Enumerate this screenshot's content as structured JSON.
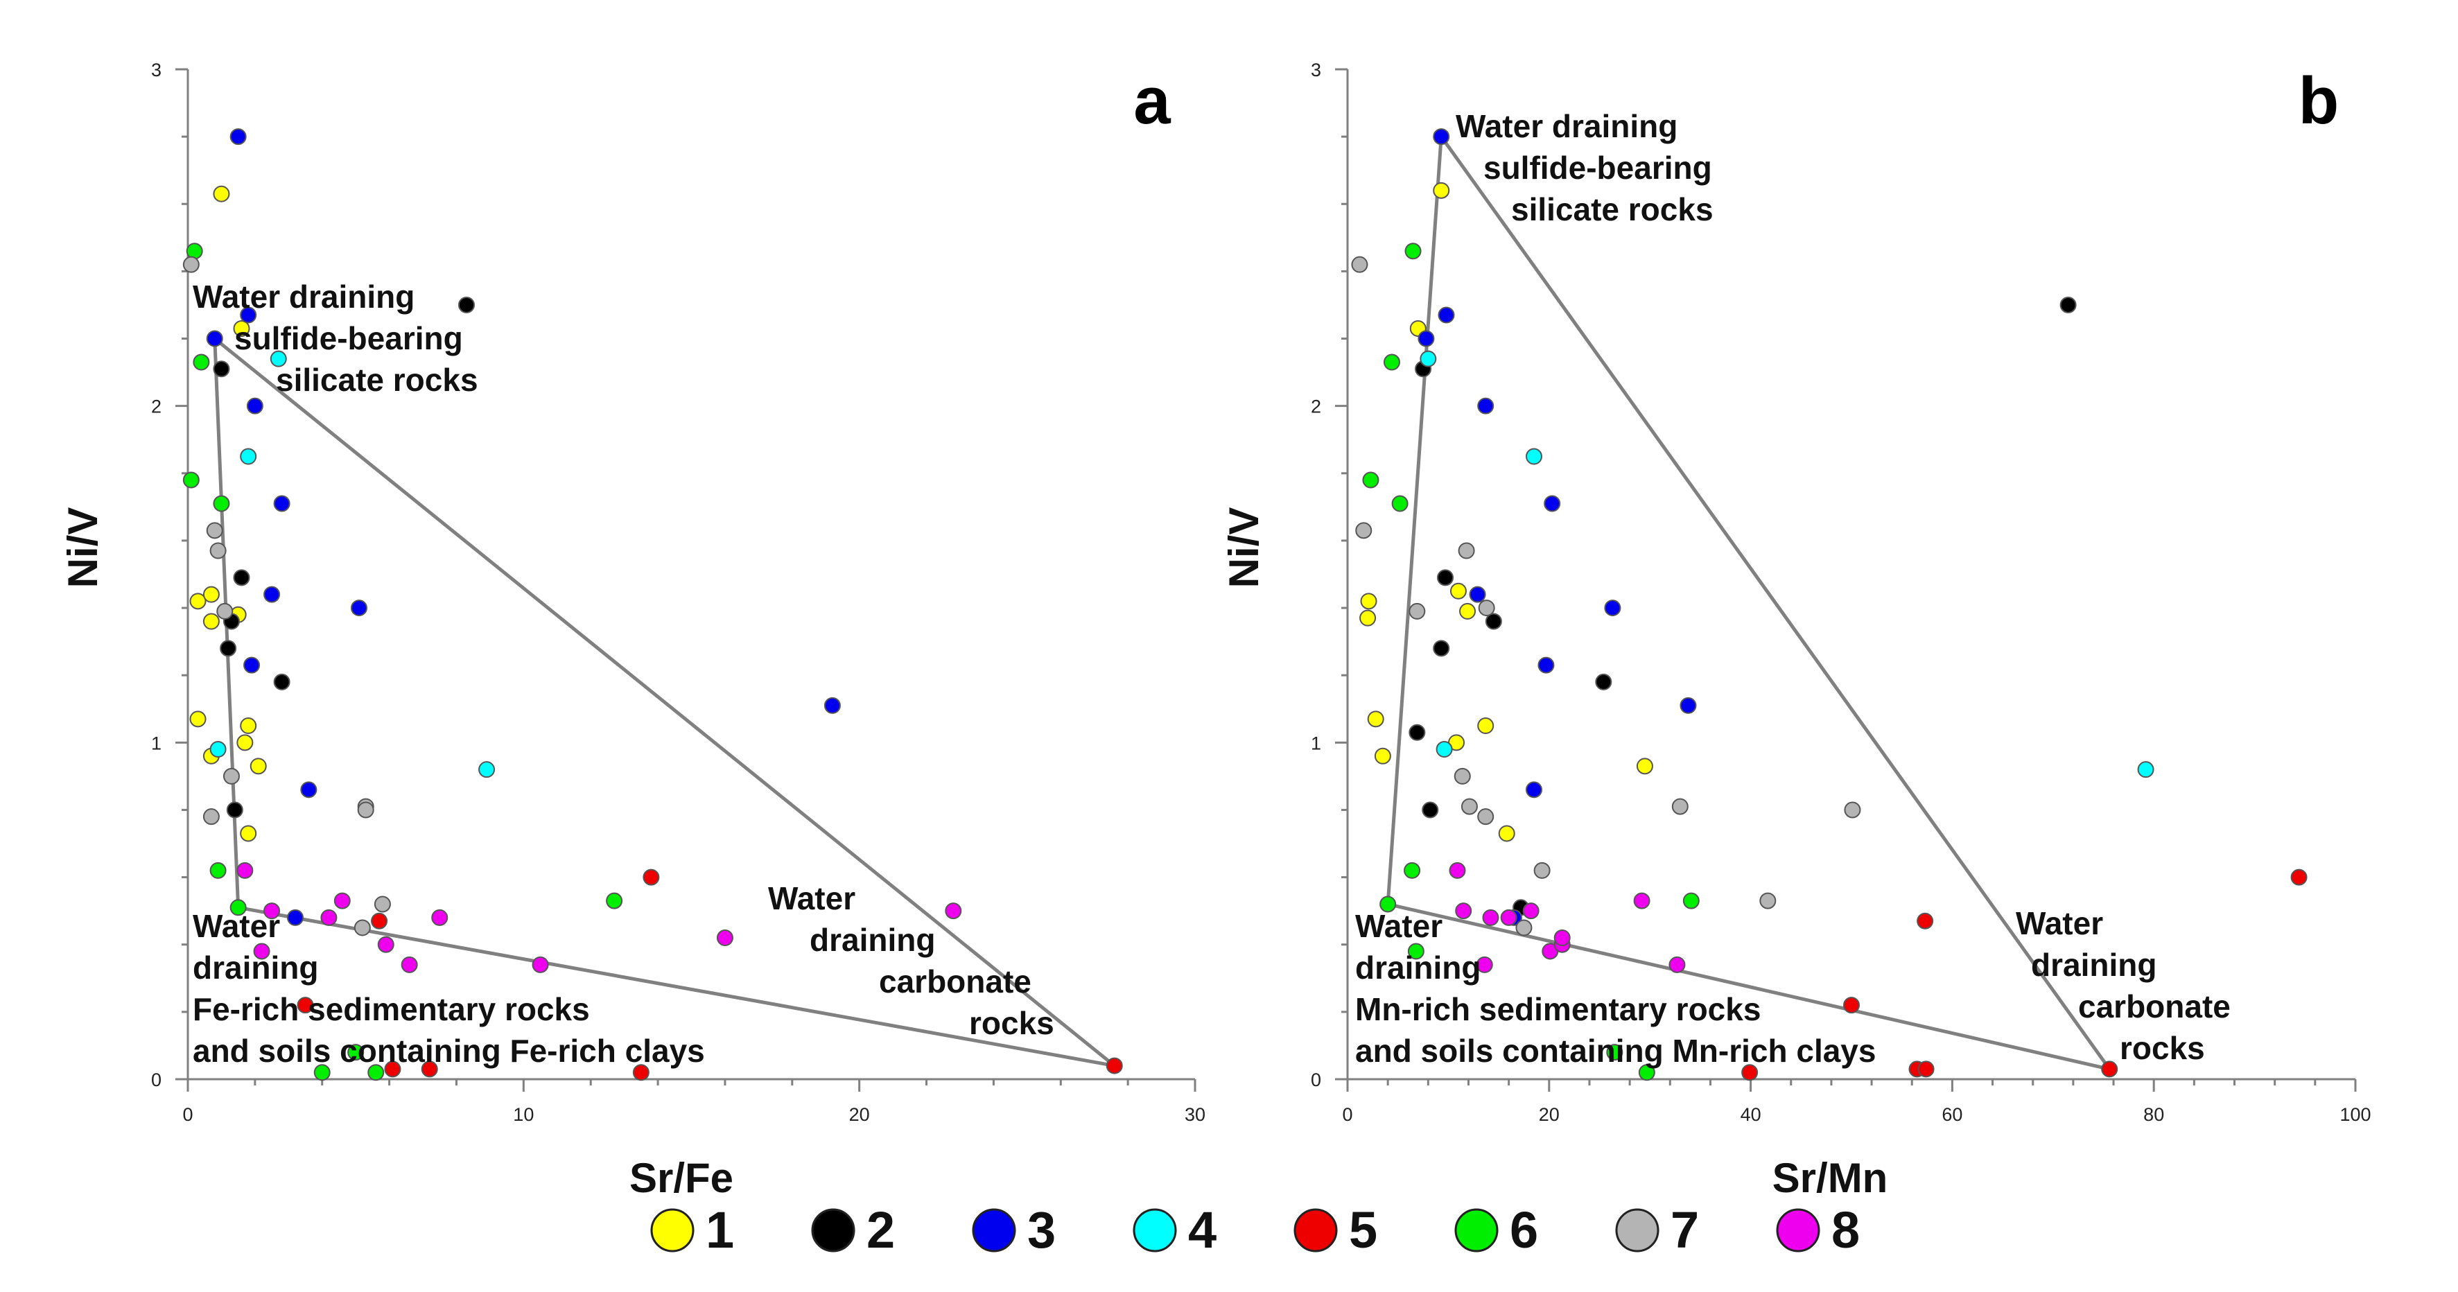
{
  "colors": {
    "1": "#ffff00",
    "2": "#000000",
    "3": "#0000ee",
    "4": "#00ffff",
    "5": "#ee0000",
    "6": "#00ee00",
    "7": "#b4b4b4",
    "8": "#ee00ee"
  },
  "legend": [
    {
      "group": "1",
      "label": "1",
      "color": "#ffff00"
    },
    {
      "group": "2",
      "label": "2",
      "color": "#000000"
    },
    {
      "group": "3",
      "label": "3",
      "color": "#0000ee"
    },
    {
      "group": "4",
      "label": "4",
      "color": "#00ffff"
    },
    {
      "group": "5",
      "label": "5",
      "color": "#ee0000"
    },
    {
      "group": "6",
      "label": "6",
      "color": "#00ee00"
    },
    {
      "group": "7",
      "label": "7",
      "color": "#b4b4b4"
    },
    {
      "group": "8",
      "label": "8",
      "color": "#ee00ee"
    }
  ],
  "chart_data": [
    {
      "panel": "a",
      "type": "scatter",
      "xlabel": "Sr/Fe",
      "ylabel": "Ni/V",
      "xlim": [
        0,
        30
      ],
      "ylim": [
        0,
        3
      ],
      "xticks": [
        "0",
        "10",
        "20",
        "30"
      ],
      "yticks": [
        "0",
        "1",
        "2",
        "3"
      ],
      "annotations": [
        {
          "lines": [
            "Water draining",
            "sulfide-bearing",
            "silicate rocks"
          ]
        },
        {
          "lines": [
            "Water",
            "draining",
            "carbonate",
            "rocks"
          ]
        },
        {
          "lines": [
            "Water",
            "draining",
            "Fe-rich sedimentary rocks",
            "and soils containing Fe-rich clays"
          ]
        }
      ],
      "boundary": [
        [
          0.8,
          2.2
        ],
        [
          27.6,
          0.04
        ],
        [
          1.5,
          0.51
        ],
        [
          0.8,
          2.2
        ]
      ],
      "series": [
        {
          "name": "1",
          "points": [
            [
              1.0,
              2.63
            ],
            [
              1.6,
              2.23
            ],
            [
              0.3,
              1.42
            ],
            [
              0.7,
              1.44
            ],
            [
              0.7,
              1.36
            ],
            [
              1.5,
              1.38
            ],
            [
              0.3,
              1.07
            ],
            [
              1.8,
              1.05
            ],
            [
              1.7,
              1.0
            ],
            [
              0.7,
              0.96
            ],
            [
              2.1,
              0.93
            ],
            [
              1.8,
              0.73
            ]
          ]
        },
        {
          "name": "2",
          "points": [
            [
              8.3,
              2.3
            ],
            [
              1.0,
              2.11
            ],
            [
              1.6,
              1.49
            ],
            [
              1.3,
              1.36
            ],
            [
              1.2,
              1.28
            ],
            [
              2.8,
              1.18
            ],
            [
              1.4,
              0.8
            ]
          ]
        },
        {
          "name": "3",
          "points": [
            [
              1.5,
              2.8
            ],
            [
              0.8,
              2.2
            ],
            [
              1.8,
              2.27
            ],
            [
              2.0,
              2.0
            ],
            [
              2.8,
              1.71
            ],
            [
              2.5,
              1.44
            ],
            [
              5.1,
              1.4
            ],
            [
              1.9,
              1.23
            ],
            [
              19.2,
              1.11
            ],
            [
              3.6,
              0.86
            ],
            [
              3.2,
              0.48
            ]
          ]
        },
        {
          "name": "4",
          "points": [
            [
              2.7,
              2.14
            ],
            [
              1.8,
              1.85
            ],
            [
              0.9,
              0.98
            ],
            [
              8.9,
              0.92
            ]
          ]
        },
        {
          "name": "5",
          "points": [
            [
              13.8,
              0.6
            ],
            [
              5.7,
              0.47
            ],
            [
              3.5,
              0.22
            ],
            [
              6.1,
              0.03
            ],
            [
              7.2,
              0.03
            ],
            [
              13.5,
              0.02
            ],
            [
              27.6,
              0.04
            ]
          ]
        },
        {
          "name": "6",
          "points": [
            [
              0.2,
              2.46
            ],
            [
              0.4,
              2.13
            ],
            [
              0.1,
              1.78
            ],
            [
              1.0,
              1.71
            ],
            [
              0.9,
              0.62
            ],
            [
              1.5,
              0.51
            ],
            [
              12.7,
              0.53
            ],
            [
              5.0,
              0.08
            ],
            [
              4.0,
              0.02
            ],
            [
              5.6,
              0.02
            ]
          ]
        },
        {
          "name": "7",
          "points": [
            [
              0.1,
              2.42
            ],
            [
              0.8,
              1.63
            ],
            [
              0.9,
              1.57
            ],
            [
              1.1,
              1.39
            ],
            [
              1.3,
              0.9
            ],
            [
              0.7,
              0.78
            ],
            [
              5.3,
              0.81
            ],
            [
              5.3,
              0.8
            ],
            [
              5.8,
              0.52
            ],
            [
              5.2,
              0.45
            ]
          ]
        },
        {
          "name": "8",
          "points": [
            [
              1.7,
              0.62
            ],
            [
              2.5,
              0.5
            ],
            [
              2.2,
              0.38
            ],
            [
              4.6,
              0.53
            ],
            [
              4.2,
              0.48
            ],
            [
              5.9,
              0.4
            ],
            [
              6.6,
              0.34
            ],
            [
              7.5,
              0.48
            ],
            [
              10.5,
              0.34
            ],
            [
              16.0,
              0.42
            ],
            [
              22.8,
              0.5
            ]
          ]
        }
      ]
    },
    {
      "panel": "b",
      "type": "scatter",
      "xlabel": "Sr/Mn",
      "ylabel": "Ni/V",
      "xlim": [
        0,
        100
      ],
      "ylim": [
        0,
        3
      ],
      "xticks": [
        "0",
        "20",
        "40",
        "60",
        "80",
        "100"
      ],
      "yticks": [
        "0",
        "1",
        "2",
        "3"
      ],
      "annotations": [
        {
          "lines": [
            "Water draining",
            "sulfide-bearing",
            "silicate rocks"
          ]
        },
        {
          "lines": [
            "Water",
            "draining",
            "carbonate",
            "rocks"
          ]
        },
        {
          "lines": [
            "Water",
            "draining",
            "Mn-rich sedimentary rocks",
            "and soils containing Mn-rich clays"
          ]
        }
      ],
      "boundary": [
        [
          9.3,
          2.8
        ],
        [
          75.6,
          0.03
        ],
        [
          4.0,
          0.52
        ],
        [
          9.3,
          2.8
        ]
      ],
      "series": [
        {
          "name": "1",
          "points": [
            [
              9.3,
              2.64
            ],
            [
              7.0,
              2.23
            ],
            [
              2.1,
              1.42
            ],
            [
              2.0,
              1.37
            ],
            [
              11.0,
              1.45
            ],
            [
              11.9,
              1.39
            ],
            [
              2.8,
              1.07
            ],
            [
              13.7,
              1.05
            ],
            [
              10.8,
              1.0
            ],
            [
              3.5,
              0.96
            ],
            [
              29.5,
              0.93
            ],
            [
              15.8,
              0.73
            ]
          ]
        },
        {
          "name": "2",
          "points": [
            [
              71.5,
              2.3
            ],
            [
              7.5,
              2.11
            ],
            [
              9.7,
              1.49
            ],
            [
              14.5,
              1.36
            ],
            [
              9.3,
              1.28
            ],
            [
              25.4,
              1.18
            ],
            [
              8.2,
              0.8
            ],
            [
              6.9,
              1.03
            ],
            [
              17.2,
              0.51
            ]
          ]
        },
        {
          "name": "3",
          "points": [
            [
              9.3,
              2.8
            ],
            [
              7.8,
              2.2
            ],
            [
              9.8,
              2.27
            ],
            [
              13.7,
              2.0
            ],
            [
              20.3,
              1.71
            ],
            [
              12.9,
              1.44
            ],
            [
              26.3,
              1.4
            ],
            [
              19.7,
              1.23
            ],
            [
              33.8,
              1.11
            ],
            [
              18.5,
              0.86
            ],
            [
              16.5,
              0.48
            ]
          ]
        },
        {
          "name": "4",
          "points": [
            [
              8.0,
              2.14
            ],
            [
              18.5,
              1.85
            ],
            [
              9.6,
              0.98
            ],
            [
              79.2,
              0.92
            ]
          ]
        },
        {
          "name": "5",
          "points": [
            [
              94.4,
              0.6
            ],
            [
              57.3,
              0.47
            ],
            [
              50.0,
              0.22
            ],
            [
              56.5,
              0.03
            ],
            [
              57.4,
              0.03
            ],
            [
              39.9,
              0.02
            ],
            [
              75.6,
              0.03
            ]
          ]
        },
        {
          "name": "6",
          "points": [
            [
              6.5,
              2.46
            ],
            [
              4.4,
              2.13
            ],
            [
              2.3,
              1.78
            ],
            [
              5.2,
              1.71
            ],
            [
              6.4,
              0.62
            ],
            [
              4.0,
              0.52
            ],
            [
              34.1,
              0.53
            ],
            [
              26.5,
              0.08
            ],
            [
              29.7,
              0.02
            ],
            [
              6.8,
              0.38
            ]
          ]
        },
        {
          "name": "7",
          "points": [
            [
              1.2,
              2.42
            ],
            [
              1.6,
              1.63
            ],
            [
              11.8,
              1.57
            ],
            [
              6.9,
              1.39
            ],
            [
              11.4,
              0.9
            ],
            [
              13.7,
              0.78
            ],
            [
              33.0,
              0.81
            ],
            [
              50.1,
              0.8
            ],
            [
              41.7,
              0.53
            ],
            [
              12.1,
              0.81
            ],
            [
              19.3,
              0.62
            ],
            [
              13.8,
              1.4
            ],
            [
              17.5,
              0.45
            ]
          ]
        },
        {
          "name": "8",
          "points": [
            [
              10.9,
              0.62
            ],
            [
              11.5,
              0.5
            ],
            [
              20.1,
              0.38
            ],
            [
              29.2,
              0.53
            ],
            [
              14.2,
              0.48
            ],
            [
              21.3,
              0.4
            ],
            [
              13.6,
              0.34
            ],
            [
              16.0,
              0.48
            ],
            [
              32.7,
              0.34
            ],
            [
              21.3,
              0.42
            ],
            [
              18.2,
              0.5
            ]
          ]
        }
      ]
    }
  ]
}
